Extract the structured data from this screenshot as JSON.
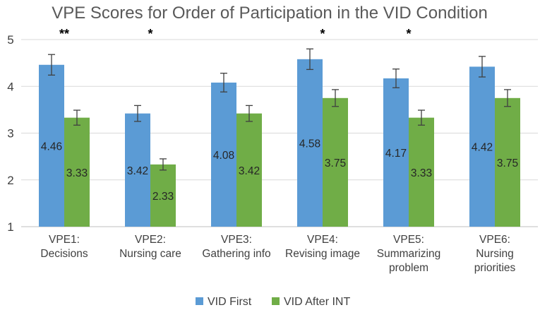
{
  "chart_data": {
    "type": "bar",
    "title": "VPE Scores for Order of Participation in the VID Condition",
    "categories": [
      [
        "VPE1:",
        "Decisions"
      ],
      [
        "VPE2:",
        "Nursing care"
      ],
      [
        "VPE3:",
        "Gathering info"
      ],
      [
        "VPE4:",
        "Revising image"
      ],
      [
        "VPE5:",
        "Summarizing",
        "problem"
      ],
      [
        "VPE6:",
        "Nursing",
        "priorities"
      ]
    ],
    "series": [
      {
        "name": "VID First",
        "color": "#5b9bd5",
        "values": [
          4.46,
          3.42,
          4.08,
          4.58,
          4.17,
          4.42
        ],
        "errors": [
          0.22,
          0.17,
          0.2,
          0.22,
          0.2,
          0.22
        ]
      },
      {
        "name": "VID After INT",
        "color": "#70ad47",
        "values": [
          3.33,
          2.33,
          3.42,
          3.75,
          3.33,
          3.75
        ],
        "errors": [
          0.16,
          0.12,
          0.17,
          0.18,
          0.16,
          0.18
        ]
      }
    ],
    "data_labels": [
      [
        "4.46",
        "3.42",
        "4.08",
        "4.58",
        "4.17",
        "4.42"
      ],
      [
        "3.33",
        "2.33",
        "3.42",
        "3.75",
        "3.33",
        "3.75"
      ]
    ],
    "significance": [
      "**",
      "*",
      "",
      "*",
      "*",
      ""
    ],
    "ylim": [
      1,
      5
    ],
    "yticks": [
      1,
      2,
      3,
      4,
      5
    ],
    "xlabel": "",
    "ylabel": "",
    "grid": true,
    "legend_position": "bottom"
  }
}
